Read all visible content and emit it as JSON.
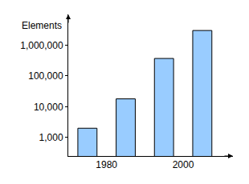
{
  "chart_data": {
    "type": "bar",
    "ylabel": "Elements",
    "x": [
      1975,
      1985,
      1995,
      2005
    ],
    "values": [
      2000,
      18000,
      370000,
      3000000
    ],
    "color": "#99ccff",
    "log": "y",
    "grid": false,
    "xlim": [
      1970,
      2013
    ],
    "xticks": [
      1980,
      2000
    ],
    "ylim": [
      250,
      10000000
    ],
    "yticks": [
      {
        "value": 1000,
        "label": "1,000"
      },
      {
        "value": 10000,
        "label": "10,000"
      },
      {
        "value": 100000,
        "label": "100,000"
      },
      {
        "value": 1000000,
        "label": "1,000,000"
      }
    ]
  }
}
